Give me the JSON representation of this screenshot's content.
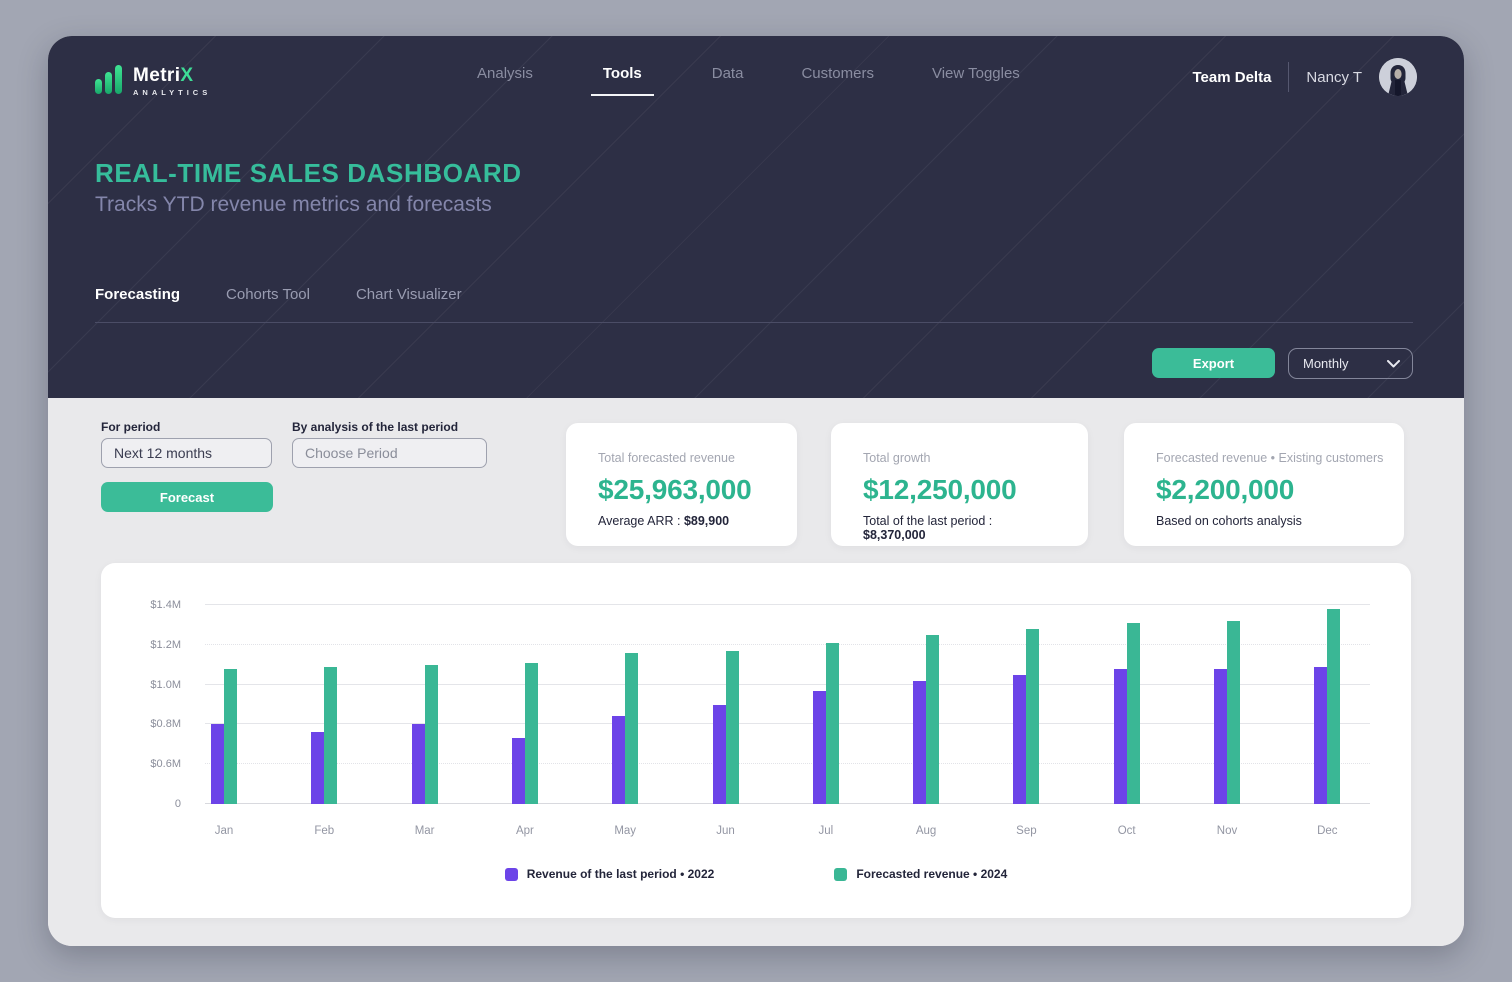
{
  "brand": {
    "name_primary": "Metri",
    "name_accent": "X",
    "subtitle": "ANALYTICS",
    "logo_icon": "bar-chart-bars"
  },
  "nav": {
    "items": [
      {
        "label": "Analysis",
        "active": false
      },
      {
        "label": "Tools",
        "active": true
      },
      {
        "label": "Data",
        "active": false
      },
      {
        "label": "Customers",
        "active": false
      },
      {
        "label": "View Toggles",
        "active": false
      }
    ],
    "team": "Team Delta",
    "user": "Nancy T",
    "avatar_icon": "person-photo"
  },
  "header": {
    "title": "REAL-TIME SALES DASHBOARD",
    "subtitle": "Tracks YTD revenue metrics and forecasts"
  },
  "tabs": [
    {
      "label": "Forecasting",
      "active": true
    },
    {
      "label": "Cohorts Tool",
      "active": false
    },
    {
      "label": "Chart Visualizer",
      "active": false
    }
  ],
  "toolbar": {
    "export_label": "Export",
    "period_select": "Monthly",
    "period_icon": "chevron-down"
  },
  "controls": {
    "for_period": {
      "label": "For period",
      "value": "Next 12 months"
    },
    "analysis_period": {
      "label": "By analysis of the last period",
      "placeholder": "Choose Period"
    },
    "forecast_label": "Forecast"
  },
  "metrics": [
    {
      "title": "Total forecasted revenue",
      "value": "$25,963,000",
      "footer_label": "Average ARR : ",
      "footer_value": "$89,900"
    },
    {
      "title": "Total growth",
      "value": "$12,250,000",
      "footer_label": "Total of the last period : ",
      "footer_value": "$8,370,000"
    },
    {
      "title": "Forecasted revenue • Existing customers",
      "value": "$2,200,000",
      "footer_label": "Based on cohorts analysis",
      "footer_value": ""
    }
  ],
  "chart_data": {
    "type": "bar",
    "title": "",
    "xlabel": "",
    "ylabel": "",
    "unit": "USD millions",
    "categories": [
      "Jan",
      "Feb",
      "Mar",
      "Apr",
      "May",
      "Jun",
      "Jul",
      "Aug",
      "Sep",
      "Oct",
      "Nov",
      "Dec"
    ],
    "series": [
      {
        "name": "Revenue of the last period • 2022",
        "color": "#6C44E8",
        "values": [
          0.8,
          0.76,
          0.8,
          0.73,
          0.84,
          0.9,
          0.97,
          1.02,
          1.05,
          1.08,
          1.08,
          1.09
        ]
      },
      {
        "name": "Forecasted revenue • 2024",
        "color": "#3AB795",
        "values": [
          1.08,
          1.09,
          1.1,
          1.11,
          1.16,
          1.17,
          1.21,
          1.25,
          1.28,
          1.31,
          1.32,
          1.38
        ]
      }
    ],
    "y_ticks": [
      {
        "label": "$1.4M",
        "value": 1.4
      },
      {
        "label": "$1.2M",
        "value": 1.2
      },
      {
        "label": "$1.0M",
        "value": 1.0
      },
      {
        "label": "$0.8M",
        "value": 0.8
      },
      {
        "label": "$0.6M",
        "value": 0.6
      },
      {
        "label": "0",
        "value": 0
      }
    ],
    "grid": true,
    "legend_position": "bottom"
  },
  "colors": {
    "page_bg": "#A2A6B3",
    "header_bg": "#2D2F45",
    "section_bg": "#E9E9EB",
    "accent_teal": "#3BBC98",
    "title_teal": "#36BD9B",
    "metric_value": "#2DB48F",
    "bar_purple": "#6C44E8",
    "bar_green": "#3AB795"
  }
}
